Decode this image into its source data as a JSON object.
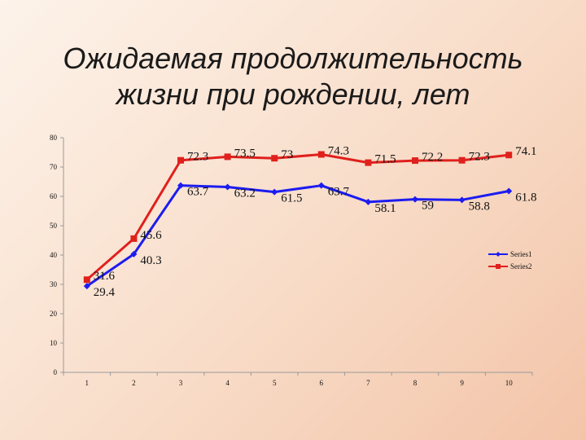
{
  "slide": {
    "title_line1": "Ожидаемая продолжительность",
    "title_line2": "жизни при рождении, лет"
  },
  "chart_data": {
    "type": "line",
    "categories": [
      "1",
      "2",
      "3",
      "4",
      "5",
      "6",
      "7",
      "8",
      "9",
      "10"
    ],
    "ylim": [
      0,
      80
    ],
    "yticks": [
      0,
      10,
      20,
      30,
      40,
      50,
      60,
      70,
      80
    ],
    "grid": false,
    "legend_position": "right",
    "series": [
      {
        "name": "Series1",
        "color": "#1c1cf0",
        "marker": "diamond",
        "values": [
          29.4,
          40.3,
          63.7,
          63.2,
          61.5,
          63.7,
          58.1,
          59,
          58.8,
          61.8
        ],
        "labels": [
          "29.4",
          "40.3",
          "63.7",
          "63.2",
          "61.5",
          "63.7",
          "58.1",
          "59",
          "58.8",
          "61.8"
        ]
      },
      {
        "name": "Series2",
        "color": "#e0201c",
        "marker": "square",
        "values": [
          31.6,
          45.6,
          72.3,
          73.5,
          73,
          74.3,
          71.5,
          72.2,
          72.3,
          74.1
        ],
        "labels": [
          "31.6",
          "45.6",
          "72.3",
          "73.5",
          "73",
          "74.3",
          "71.5",
          "72.2",
          "72.3",
          "74.1"
        ]
      }
    ]
  }
}
